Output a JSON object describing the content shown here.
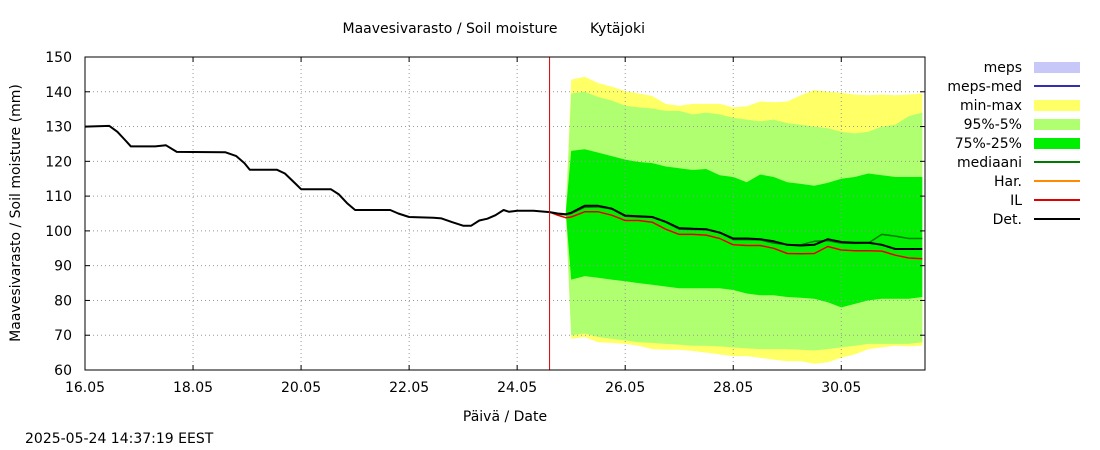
{
  "chart_data": {
    "type": "area",
    "title": "Maavesivarasto / Soil moisture",
    "location": "Kytäjoki",
    "xlabel": "Päivä / Date",
    "ylabel": "Maavesivarasto / Soil moisture (mm)",
    "ylim": [
      60,
      150
    ],
    "yticks": [
      60,
      70,
      80,
      90,
      100,
      110,
      120,
      130,
      140,
      150
    ],
    "xlim": [
      16.0,
      31.55
    ],
    "xticks": [
      {
        "value": 16,
        "label": "16.05"
      },
      {
        "value": 18,
        "label": "18.05"
      },
      {
        "value": 20,
        "label": "20.05"
      },
      {
        "value": 22,
        "label": "22.05"
      },
      {
        "value": 24,
        "label": "24.05"
      },
      {
        "value": 26,
        "label": "26.05"
      },
      {
        "value": 28,
        "label": "28.05"
      },
      {
        "value": 30,
        "label": "30.05"
      }
    ],
    "grid": true,
    "forecast_start": 24.6,
    "timestamp": "2025-05-24 14:37:19 EEST",
    "legend": [
      {
        "label": "meps",
        "kind": "box",
        "color": "#c8c8f8"
      },
      {
        "label": "meps-med",
        "kind": "line",
        "color": "#3030b0"
      },
      {
        "label": "min-max",
        "kind": "box",
        "color": "#ffff66"
      },
      {
        "label": "95%-5%",
        "kind": "box",
        "color": "#b0ff70"
      },
      {
        "label": "75%-25%",
        "kind": "box",
        "color": "#00ee00"
      },
      {
        "label": "mediaani",
        "kind": "line",
        "color": "#007a00"
      },
      {
        "label": "Har.",
        "kind": "line",
        "color": "#ff8c00"
      },
      {
        "label": "IL",
        "kind": "line",
        "color": "#e00000"
      },
      {
        "label": "Det.",
        "kind": "line",
        "color": "#000000"
      }
    ],
    "colors": {
      "minmax": "#ffff66",
      "p95_5": "#b0ff70",
      "p75_25": "#00ee00",
      "mediaani": "#007a00",
      "har": "#ff8c00",
      "il": "#e00000",
      "det": "#000000",
      "forecast_line": "#e00000",
      "grid": "#999999"
    },
    "series": {
      "observed": {
        "x": [
          16.0,
          16.45,
          16.6,
          16.75,
          16.85,
          17.3,
          17.5,
          17.7,
          18.6,
          18.8,
          18.95,
          19.05,
          19.55,
          19.7,
          19.9,
          20.0,
          20.55,
          20.7,
          20.85,
          21.0,
          21.65,
          21.8,
          22.0,
          22.45,
          22.6,
          22.8,
          23.0,
          23.15,
          23.3,
          23.45,
          23.6,
          23.75,
          23.85,
          24.0,
          24.3,
          24.6
        ],
        "y": [
          130,
          130.2,
          128.5,
          126,
          124.3,
          124.3,
          124.6,
          122.7,
          122.6,
          121.5,
          119.5,
          117.6,
          117.6,
          116.5,
          113.5,
          112,
          112,
          110.5,
          108,
          106,
          106,
          105,
          104,
          103.8,
          103.6,
          102.5,
          101.5,
          101.5,
          103,
          103.5,
          104.5,
          106,
          105.5,
          105.8,
          105.8,
          105.4
        ]
      },
      "forecast_x": [
        24.6,
        24.75,
        24.9,
        25.0,
        25.25,
        25.5,
        25.75,
        26.0,
        26.25,
        26.5,
        26.75,
        27.0,
        27.25,
        27.5,
        27.75,
        28.0,
        28.25,
        28.5,
        28.75,
        29.0,
        29.25,
        29.5,
        29.75,
        30.0,
        30.25,
        30.5,
        30.75,
        31.0,
        31.25,
        31.5
      ],
      "minmax_upper": [
        105.4,
        105.4,
        105.4,
        143.5,
        144.3,
        142.5,
        141.5,
        140.2,
        139.5,
        138.8,
        136.5,
        136.0,
        136.5,
        136.5,
        136.5,
        135.5,
        135.8,
        137.2,
        137.0,
        137.2,
        139.0,
        140.5,
        140.0,
        139.7,
        139.2,
        139.0,
        139.2,
        139.0,
        139.2,
        139.5
      ],
      "minmax_lower": [
        105.4,
        105.4,
        105.4,
        69.0,
        69.5,
        68.0,
        67.8,
        67.5,
        67.0,
        66.0,
        65.8,
        65.8,
        65.5,
        65.0,
        64.5,
        64.0,
        64.0,
        63.5,
        63.0,
        62.5,
        62.5,
        61.8,
        62.2,
        63.5,
        64.5,
        66.0,
        66.5,
        67.0,
        66.8,
        67.0
      ],
      "p95_upper": [
        105.4,
        105.4,
        105.4,
        139.5,
        140.0,
        138.5,
        137.5,
        136.0,
        135.5,
        135.2,
        134.5,
        134.5,
        133.5,
        134.0,
        133.5,
        132.5,
        132.0,
        131.5,
        132.0,
        131.0,
        130.5,
        130.0,
        129.5,
        128.5,
        128.0,
        128.5,
        130.0,
        130.5,
        133.0,
        134.0
      ],
      "p95_lower": [
        105.4,
        105.4,
        105.4,
        70.0,
        70.5,
        69.5,
        69.0,
        68.5,
        68.0,
        67.8,
        67.5,
        67.3,
        67.0,
        67.0,
        66.8,
        66.5,
        66.2,
        66.0,
        66.0,
        66.0,
        65.8,
        65.6,
        66.0,
        66.5,
        67.0,
        67.5,
        67.5,
        67.5,
        67.5,
        68.0
      ],
      "p75_upper": [
        105.4,
        105.4,
        105.4,
        123.0,
        123.5,
        122.5,
        121.5,
        120.5,
        119.8,
        119.5,
        118.5,
        118.0,
        117.5,
        117.8,
        116.0,
        115.5,
        114.0,
        116.2,
        115.5,
        114.0,
        113.5,
        113.0,
        113.8,
        115.0,
        115.5,
        116.5,
        116.0,
        115.5,
        115.5,
        115.5
      ],
      "p75_lower": [
        105.4,
        105.4,
        105.4,
        86.0,
        87.0,
        86.5,
        86.0,
        85.5,
        85.0,
        84.5,
        84.0,
        83.5,
        83.5,
        83.5,
        83.5,
        83.0,
        82.0,
        81.5,
        81.5,
        81.0,
        80.8,
        80.5,
        79.5,
        78.0,
        79.0,
        80.0,
        80.5,
        80.5,
        80.5,
        81.0
      ],
      "mediaani": [
        105.4,
        104.8,
        104.6,
        105.0,
        106.8,
        106.9,
        106.3,
        104.2,
        104.0,
        104.0,
        102.5,
        100.5,
        100.4,
        100.3,
        99.5,
        97.5,
        97.5,
        97.4,
        96.5,
        96.0,
        96.0,
        97.0,
        97.2,
        96.5,
        96.4,
        96.5,
        99.0,
        98.5,
        97.8,
        97.8
      ],
      "har": [
        105.4,
        104.5,
        103.8,
        104.0,
        105.5,
        105.5,
        104.5,
        103.0,
        103.0,
        102.5,
        100.5,
        99.0,
        99.0,
        98.8,
        97.8,
        96.0,
        95.8,
        95.8,
        95.0,
        93.5,
        93.4,
        93.5,
        95.5,
        94.5,
        94.3,
        94.3,
        94.2,
        93.0,
        92.2,
        92.0
      ],
      "il": [
        105.4,
        104.5,
        103.8,
        104.0,
        105.5,
        105.5,
        104.5,
        103.0,
        103.0,
        102.5,
        100.5,
        99.0,
        99.0,
        98.8,
        97.8,
        96.0,
        95.8,
        95.8,
        95.0,
        93.5,
        93.4,
        93.5,
        95.5,
        94.5,
        94.3,
        94.3,
        94.2,
        93.0,
        92.2,
        92.0
      ],
      "det": [
        105.4,
        105.0,
        104.8,
        105.2,
        107.2,
        107.2,
        106.4,
        104.4,
        104.2,
        104.0,
        102.6,
        100.8,
        100.6,
        100.5,
        99.5,
        97.8,
        97.8,
        97.6,
        97.0,
        96.0,
        95.8,
        96.0,
        97.6,
        96.8,
        96.6,
        96.6,
        96.0,
        94.8,
        94.8,
        94.8
      ]
    }
  }
}
